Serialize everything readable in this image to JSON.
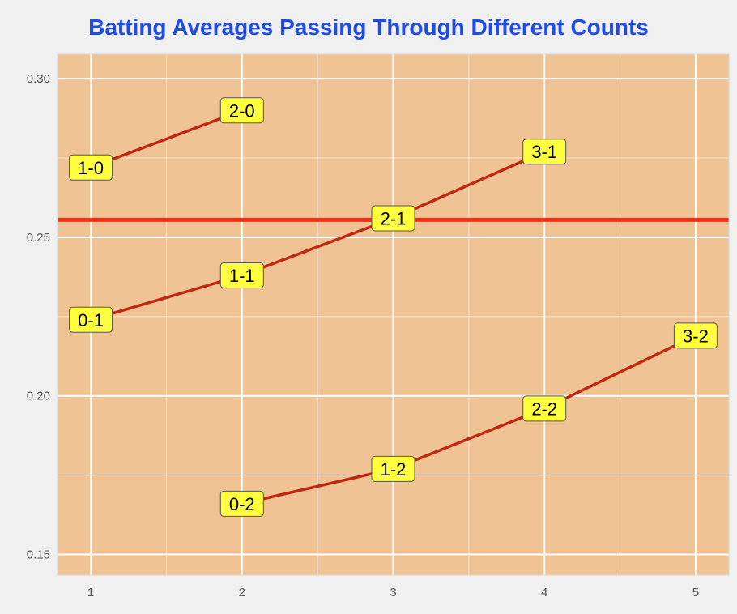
{
  "title": "Batting Averages Passing Through Different Counts",
  "colors": {
    "title": "#1f4be6",
    "panel": "#efc394",
    "grid": "#ffffff",
    "series_line": "#c0280f",
    "reference_line": "#ff2a1a",
    "label_fill": "#ffff40",
    "label_border": "#555555"
  },
  "chart_data": {
    "type": "line",
    "title": "Batting Averages Passing Through Different Counts",
    "xlabel": "",
    "ylabel": "",
    "xlim": [
      0.78,
      5.22
    ],
    "ylim": [
      0.1435,
      0.3077
    ],
    "x_ticks": [
      "1",
      "2",
      "3",
      "4",
      "5"
    ],
    "y_ticks": [
      "0.15",
      "0.20",
      "0.25",
      "0.30"
    ],
    "grid": true,
    "legend": "none",
    "reference_line": {
      "orientation": "horizontal",
      "y": 0.2555
    },
    "series": [
      {
        "points": [
          {
            "x": 1,
            "y": 0.272,
            "label": "1-0"
          },
          {
            "x": 2,
            "y": 0.29,
            "label": "2-0"
          }
        ]
      },
      {
        "points": [
          {
            "x": 1,
            "y": 0.224,
            "label": "0-1"
          },
          {
            "x": 2,
            "y": 0.238,
            "label": "1-1"
          },
          {
            "x": 3,
            "y": 0.256,
            "label": "2-1"
          },
          {
            "x": 4,
            "y": 0.277,
            "label": "3-1"
          }
        ]
      },
      {
        "points": [
          {
            "x": 2,
            "y": 0.166,
            "label": "0-2"
          },
          {
            "x": 3,
            "y": 0.177,
            "label": "1-2"
          },
          {
            "x": 4,
            "y": 0.196,
            "label": "2-2"
          },
          {
            "x": 5,
            "y": 0.219,
            "label": "3-2"
          }
        ]
      }
    ]
  }
}
